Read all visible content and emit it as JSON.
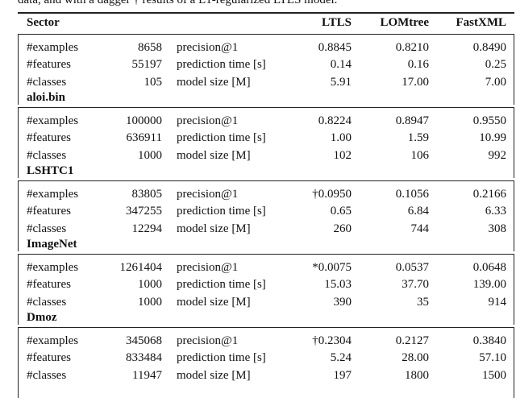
{
  "caption_fragment": "data, and with a dagger † results of a L1-regularized LTLS model.",
  "table": {
    "header": [
      "Sector",
      "LTLS",
      "LOMtree",
      "FastXML"
    ],
    "blocks": [
      {
        "rows": [
          [
            "#examples",
            "8658",
            "precision@1",
            "0.8845",
            "0.8210",
            "0.8490"
          ],
          [
            "#features",
            "55197",
            "prediction time [s]",
            "0.14",
            "0.16",
            "0.25"
          ],
          [
            "#classes",
            "105",
            "model size [M]",
            "5.91",
            "17.00",
            "7.00"
          ]
        ],
        "label": "aloi.bin"
      },
      {
        "rows": [
          [
            "#examples",
            "100000",
            "precision@1",
            "0.8224",
            "0.8947",
            "0.9550"
          ],
          [
            "#features",
            "636911",
            "prediction time [s]",
            "1.00",
            "1.59",
            "10.99"
          ],
          [
            "#classes",
            "1000",
            "model size [M]",
            "102",
            "106",
            "992"
          ]
        ],
        "label": "LSHTC1"
      },
      {
        "rows": [
          [
            "#examples",
            "83805",
            "precision@1",
            "†0.0950",
            "0.1056",
            "0.2166"
          ],
          [
            "#features",
            "347255",
            "prediction time [s]",
            "0.65",
            "6.84",
            "6.33"
          ],
          [
            "#classes",
            "12294",
            "model size [M]",
            "260",
            "744",
            "308"
          ]
        ],
        "label": "ImageNet"
      },
      {
        "rows": [
          [
            "#examples",
            "1261404",
            "precision@1",
            "*0.0075",
            "0.0537",
            "0.0648"
          ],
          [
            "#features",
            "1000",
            "prediction time [s]",
            "15.03",
            "37.70",
            "139.00"
          ],
          [
            "#classes",
            "1000",
            "model size [M]",
            "390",
            "35",
            "914"
          ]
        ],
        "label": "Dmoz"
      },
      {
        "rows": [
          [
            "#examples",
            "345068",
            "precision@1",
            "†0.2304",
            "0.2127",
            "0.3840"
          ],
          [
            "#features",
            "833484",
            "prediction time [s]",
            "5.24",
            "28.00",
            "57.10"
          ],
          [
            "#classes",
            "11947",
            "model size [M]",
            "197",
            "1800",
            "1500"
          ]
        ]
      }
    ]
  }
}
